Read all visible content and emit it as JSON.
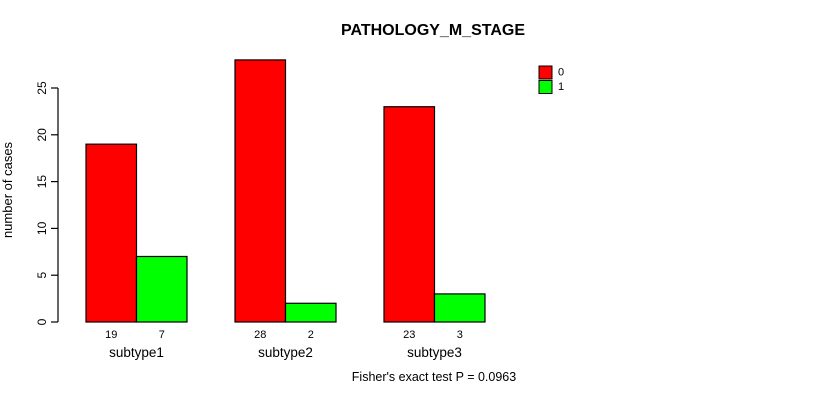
{
  "chart_data": {
    "type": "bar",
    "title": "PATHOLOGY_M_STAGE",
    "xlabel": "",
    "ylabel": "number of cases",
    "annotation": "Fisher's exact test P = 0.0963",
    "categories": [
      "subtype1",
      "subtype2",
      "subtype3"
    ],
    "series": [
      {
        "name": "0",
        "color": "#FF0000",
        "values": [
          19,
          28,
          23
        ]
      },
      {
        "name": "1",
        "color": "#00FF00",
        "values": [
          7,
          2,
          3
        ]
      }
    ],
    "yticks": [
      0,
      5,
      10,
      15,
      20,
      25
    ],
    "ylim": [
      0,
      28
    ],
    "grid": false,
    "legend_position": "top-right",
    "bar_value_labels_shown": true,
    "bar_border_color": "#000000",
    "axis_color": "#000000",
    "text_color": "#000000",
    "background_color": "#FFFFFF"
  }
}
